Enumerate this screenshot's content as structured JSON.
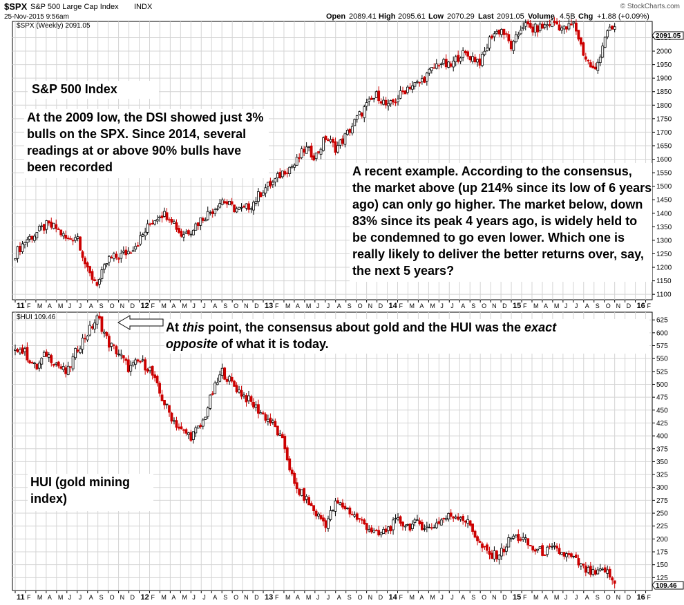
{
  "header": {
    "symbol": "$SPX",
    "name": "S&P 500 Large Cap Index",
    "exchange": "INDX",
    "date": "25-Nov-2015 9:56am",
    "brand": "© StockCharts.com",
    "open_label": "Open",
    "open": "2089.41",
    "high_label": "High",
    "high": "2095.61",
    "low_label": "Low",
    "low": "2070.29",
    "last_label": "Last",
    "last": "2091.05",
    "volume_label": "Volume",
    "volume": "4.5B",
    "chg_label": "Chg",
    "chg": "+1.88 (+0.09%)"
  },
  "annotations": {
    "spx_title": "S&P 500 Index",
    "dsi_note": "At the 2009 low, the DSI showed just 3% bulls on the SPX. Since 2014, several readings at or above 90% bulls have been recorded",
    "recent_example": "A recent example. According to the consensus, the market above (up 214% since its low of 6 years ago) can only go higher. The market below, down 83% since its peak 4 years ago, is widely held to be condemned to go even lower. Which one is really likely to deliver the better returns over, say, the next 5 years?",
    "gold_note_1": "At ",
    "gold_note_this": "this",
    "gold_note_2": " point, the consensus about gold and the HUI was the ",
    "gold_note_exact": "exact",
    "gold_note_opposite": "opposite",
    "gold_note_3": " of what it is today.",
    "hui_title": "HUI (gold mining index)"
  },
  "colors": {
    "up": "#000000",
    "down": "#cc0000",
    "grid": "#d4d4d4",
    "frame": "#000000"
  },
  "chart_data": [
    {
      "type": "candlestick",
      "panel_label": "$SPX (Weekly) 2091.05",
      "last_value_label": "2091.05",
      "x_ticks": [
        "11",
        "F",
        "M",
        "A",
        "M",
        "J",
        "J",
        "A",
        "S",
        "O",
        "N",
        "D",
        "12",
        "F",
        "M",
        "A",
        "M",
        "J",
        "J",
        "A",
        "S",
        "O",
        "N",
        "D",
        "13",
        "F",
        "M",
        "A",
        "M",
        "J",
        "J",
        "A",
        "S",
        "O",
        "N",
        "D",
        "14",
        "F",
        "M",
        "A",
        "M",
        "J",
        "J",
        "A",
        "S",
        "O",
        "N",
        "D",
        "15",
        "F",
        "M",
        "A",
        "M",
        "J",
        "J",
        "A",
        "S",
        "O",
        "N",
        "D",
        "16",
        "F"
      ],
      "y_ticks": [
        1100,
        1150,
        1200,
        1250,
        1300,
        1350,
        1400,
        1450,
        1500,
        1550,
        1600,
        1650,
        1700,
        1750,
        1800,
        1850,
        1900,
        1950,
        2000,
        2050
      ],
      "ylim": [
        1080,
        2110
      ],
      "x": [
        "2011-01",
        "2011-02",
        "2011-03",
        "2011-04",
        "2011-05",
        "2011-06",
        "2011-07",
        "2011-08",
        "2011-09",
        "2011-10",
        "2011-11",
        "2011-12",
        "2012-01",
        "2012-02",
        "2012-03",
        "2012-04",
        "2012-05",
        "2012-06",
        "2012-07",
        "2012-08",
        "2012-09",
        "2012-10",
        "2012-11",
        "2012-12",
        "2013-01",
        "2013-02",
        "2013-03",
        "2013-04",
        "2013-05",
        "2013-06",
        "2013-07",
        "2013-08",
        "2013-09",
        "2013-10",
        "2013-11",
        "2013-12",
        "2014-01",
        "2014-02",
        "2014-03",
        "2014-04",
        "2014-05",
        "2014-06",
        "2014-07",
        "2014-08",
        "2014-09",
        "2014-10",
        "2014-11",
        "2014-12",
        "2015-01",
        "2015-02",
        "2015-03",
        "2015-04",
        "2015-05",
        "2015-06",
        "2015-07",
        "2015-08",
        "2015-09",
        "2015-10",
        "2015-11"
      ],
      "values": [
        1250,
        1300,
        1325,
        1355,
        1345,
        1300,
        1320,
        1180,
        1140,
        1230,
        1240,
        1260,
        1300,
        1360,
        1400,
        1390,
        1320,
        1340,
        1380,
        1410,
        1450,
        1420,
        1410,
        1440,
        1490,
        1515,
        1560,
        1580,
        1640,
        1610,
        1680,
        1640,
        1690,
        1750,
        1800,
        1840,
        1790,
        1830,
        1870,
        1880,
        1920,
        1960,
        1940,
        1990,
        1980,
        1960,
        2060,
        2080,
        2010,
        2100,
        2080,
        2090,
        2110,
        2080,
        2100,
        1980,
        1920,
        2060,
        2090
      ]
    },
    {
      "type": "candlestick",
      "panel_label": "$HUI 109.46",
      "last_value_label": "109.46",
      "x_ticks": [
        "11",
        "F",
        "M",
        "A",
        "M",
        "J",
        "J",
        "A",
        "S",
        "O",
        "N",
        "D",
        "12",
        "F",
        "M",
        "A",
        "M",
        "J",
        "J",
        "A",
        "S",
        "O",
        "N",
        "D",
        "13",
        "F",
        "M",
        "A",
        "M",
        "J",
        "J",
        "A",
        "S",
        "O",
        "N",
        "D",
        "14",
        "F",
        "M",
        "A",
        "M",
        "J",
        "J",
        "A",
        "S",
        "O",
        "N",
        "D",
        "15",
        "F",
        "M",
        "A",
        "M",
        "J",
        "J",
        "A",
        "S",
        "O",
        "N",
        "D",
        "16",
        "F"
      ],
      "y_ticks": [
        125,
        150,
        175,
        200,
        225,
        250,
        275,
        300,
        325,
        350,
        375,
        400,
        425,
        450,
        475,
        500,
        525,
        550,
        575,
        600,
        625
      ],
      "ylim": [
        100,
        640
      ],
      "x": [
        "2011-01",
        "2011-02",
        "2011-03",
        "2011-04",
        "2011-05",
        "2011-06",
        "2011-07",
        "2011-08",
        "2011-09",
        "2011-10",
        "2011-11",
        "2011-12",
        "2012-01",
        "2012-02",
        "2012-03",
        "2012-04",
        "2012-05",
        "2012-06",
        "2012-07",
        "2012-08",
        "2012-09",
        "2012-10",
        "2012-11",
        "2012-12",
        "2013-01",
        "2013-02",
        "2013-03",
        "2013-04",
        "2013-05",
        "2013-06",
        "2013-07",
        "2013-08",
        "2013-09",
        "2013-10",
        "2013-11",
        "2013-12",
        "2014-01",
        "2014-02",
        "2014-03",
        "2014-04",
        "2014-05",
        "2014-06",
        "2014-07",
        "2014-08",
        "2014-09",
        "2014-10",
        "2014-11",
        "2014-12",
        "2015-01",
        "2015-02",
        "2015-03",
        "2015-04",
        "2015-05",
        "2015-06",
        "2015-07",
        "2015-08",
        "2015-09",
        "2015-10",
        "2015-11"
      ],
      "values": [
        575,
        560,
        530,
        560,
        540,
        520,
        570,
        600,
        630,
        580,
        560,
        530,
        545,
        530,
        480,
        440,
        410,
        400,
        420,
        480,
        525,
        500,
        480,
        460,
        440,
        420,
        380,
        300,
        280,
        250,
        230,
        270,
        260,
        240,
        225,
        205,
        220,
        235,
        225,
        230,
        220,
        235,
        245,
        245,
        225,
        185,
        165,
        175,
        205,
        200,
        180,
        175,
        180,
        170,
        160,
        140,
        130,
        140,
        110
      ]
    }
  ]
}
